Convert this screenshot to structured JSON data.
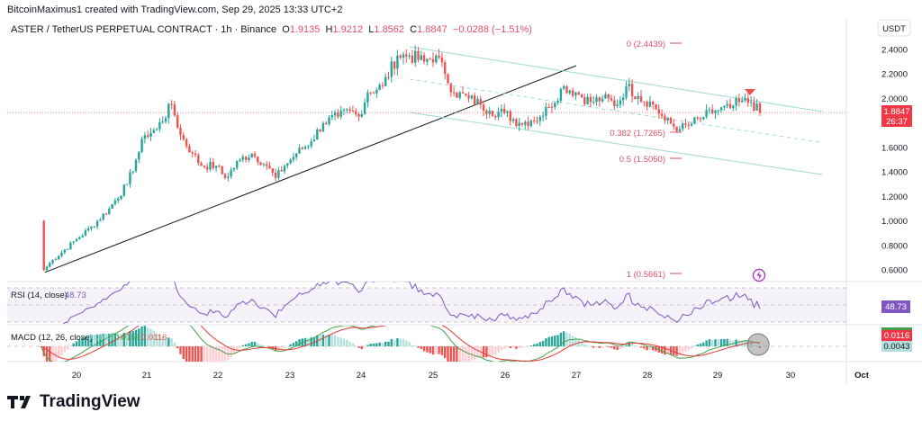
{
  "header": {
    "credit": "BitcoinMaximus1 created with TradingView.com, Sep 29, 2025 13:33 UTC+2",
    "symbol": "ASTER / TetherUS PERPETUAL CONTRACT · 1h · Binance",
    "o_label": "O",
    "o": "1.9135",
    "h_label": "H",
    "h": "1.9212",
    "l_label": "L",
    "l": "1.8562",
    "c_label": "C",
    "c": "1.8847",
    "change": "−0.0288 (−1.51%)"
  },
  "price_axis": {
    "currency": "USDT",
    "ticks": [
      "2.4000",
      "2.2000",
      "2.0000",
      "1.6000",
      "1.4000",
      "1.2000",
      "1.0000",
      "0.8000",
      "0.6000"
    ],
    "last_price": "1.8847",
    "countdown": "26:37"
  },
  "fib_labels": [
    "0 (2.4439)",
    "0.382 (1.7265)",
    "0.5 (1.5050)",
    "1 (0.5661)"
  ],
  "rsi": {
    "label": "RSI (14, close)",
    "value": "48.73"
  },
  "macd": {
    "label": "MACD (12, 26, close)",
    "hist": "0.0043",
    "macd": "0.0159",
    "signal": "0.0116",
    "axis_red": "0.0116",
    "axis_teal": "0.0043"
  },
  "time_axis": [
    "20",
    "21",
    "22",
    "23",
    "24",
    "25",
    "26",
    "27",
    "28",
    "29",
    "30",
    "Oct"
  ],
  "logo": "TradingView",
  "colors": {
    "up": "#26a69a",
    "down": "#ef5350",
    "rsi": "#7e57c2",
    "channel": "#9fd8d8",
    "fib": "#e0506a"
  },
  "chart_data": {
    "type": "candlestick",
    "interval": "1h",
    "ylim": [
      0.5,
      2.55
    ],
    "close_path": [
      [
        "09-19T12",
        1.0
      ],
      [
        "09-19T13",
        0.6
      ],
      [
        "09-19T16",
        0.68
      ],
      [
        "09-20T00",
        0.85
      ],
      [
        "09-20T05",
        0.95
      ],
      [
        "09-20T11",
        1.1
      ],
      [
        "09-20T17",
        1.3
      ],
      [
        "09-20T20",
        1.5
      ],
      [
        "09-20T23",
        1.7
      ],
      [
        "09-21T03",
        1.75
      ],
      [
        "09-21T08",
        1.95
      ],
      [
        "09-21T11",
        1.7
      ],
      [
        "09-21T15",
        1.55
      ],
      [
        "09-21T18",
        1.45
      ],
      [
        "09-21T23",
        1.45
      ],
      [
        "09-22T02",
        1.35
      ],
      [
        "09-22T07",
        1.5
      ],
      [
        "09-22T11",
        1.55
      ],
      [
        "09-22T16",
        1.45
      ],
      [
        "09-22T19",
        1.35
      ],
      [
        "09-22T22",
        1.45
      ],
      [
        "09-23T02",
        1.55
      ],
      [
        "09-23T07",
        1.65
      ],
      [
        "09-23T11",
        1.8
      ],
      [
        "09-23T16",
        1.85
      ],
      [
        "09-23T20",
        1.9
      ],
      [
        "09-23T23",
        1.85
      ],
      [
        "09-24T02",
        2.05
      ],
      [
        "09-24T07",
        2.1
      ],
      [
        "09-24T12",
        2.35
      ],
      [
        "09-24T16",
        2.35
      ],
      [
        "09-24T21",
        2.3
      ],
      [
        "09-25T01",
        2.35
      ],
      [
        "09-25T04",
        2.2
      ],
      [
        "09-25T07",
        2.05
      ],
      [
        "09-25T12",
        2.0
      ],
      [
        "09-25T16",
        1.95
      ],
      [
        "09-25T19",
        1.9
      ],
      [
        "09-26T00",
        1.88
      ],
      [
        "09-26T05",
        1.8
      ],
      [
        "09-26T09",
        1.82
      ],
      [
        "09-26T12",
        1.85
      ],
      [
        "09-26T15",
        1.93
      ],
      [
        "09-26T20",
        2.1
      ],
      [
        "09-27T00",
        2.05
      ],
      [
        "09-27T05",
        1.97
      ],
      [
        "09-27T09",
        2.0
      ],
      [
        "09-27T14",
        1.95
      ],
      [
        "09-27T17",
        2.1
      ],
      [
        "09-27T21",
        2.02
      ],
      [
        "09-28T02",
        1.95
      ],
      [
        "09-28T06",
        1.82
      ],
      [
        "09-28T11",
        1.75
      ],
      [
        "09-28T14",
        1.78
      ],
      [
        "09-28T19",
        1.85
      ],
      [
        "09-28T23",
        1.9
      ],
      [
        "09-29T04",
        1.92
      ],
      [
        "09-29T07",
        1.97
      ],
      [
        "09-29T11",
        1.97
      ],
      [
        "09-29T14",
        1.8847
      ]
    ],
    "fib_levels": [
      {
        "ratio": 0,
        "price": 2.4439
      },
      {
        "ratio": 0.382,
        "price": 1.7265
      },
      {
        "ratio": 0.5,
        "price": 1.505
      },
      {
        "ratio": 1,
        "price": 0.5661
      }
    ]
  }
}
